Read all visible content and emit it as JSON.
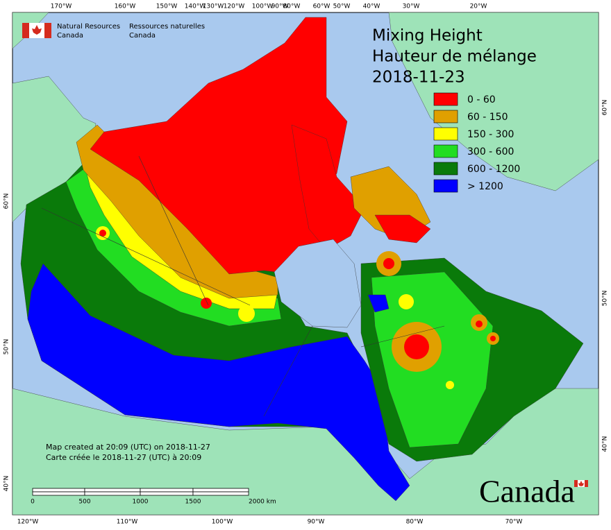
{
  "header": {
    "org_en": [
      "Natural Resources",
      "Canada"
    ],
    "org_fr": [
      "Ressources naturelles",
      "Canada"
    ]
  },
  "title": [
    "Mixing Height",
    "Hauteur de mélange",
    "2018-11-23"
  ],
  "legend": [
    {
      "label": "0 - 60",
      "color": "#ff0000"
    },
    {
      "label": "60 - 150",
      "color": "#e0a000"
    },
    {
      "label": "150 - 300",
      "color": "#ffff00"
    },
    {
      "label": "300 - 600",
      "color": "#22dd22"
    },
    {
      "label": "600 - 1200",
      "color": "#0a7a0a"
    },
    {
      "label": "> 1200",
      "color": "#0000ff"
    }
  ],
  "graticule": {
    "top": [
      "170°W",
      "160°W",
      "150°W",
      "140°W",
      "130°W",
      "120°W",
      "100°W",
      "90°W",
      "80°W",
      "60°W",
      "50°W",
      "40°W",
      "30°W",
      "20°W"
    ],
    "bottom": [
      "120°W",
      "110°W",
      "100°W",
      "90°W",
      "80°W",
      "70°W"
    ],
    "left": [
      "60°N",
      "50°N",
      "40°N"
    ],
    "right": [
      "60°N",
      "50°N",
      "40°N"
    ]
  },
  "scale": [
    "0",
    "500",
    "1000",
    "1500",
    "2000 km"
  ],
  "footnote": [
    "Map created at 20:09 (UTC) on 2018-11-27",
    "Carte créée le 2018-11-27 (UTC) à 20:09"
  ],
  "wordmark": "Canada"
}
